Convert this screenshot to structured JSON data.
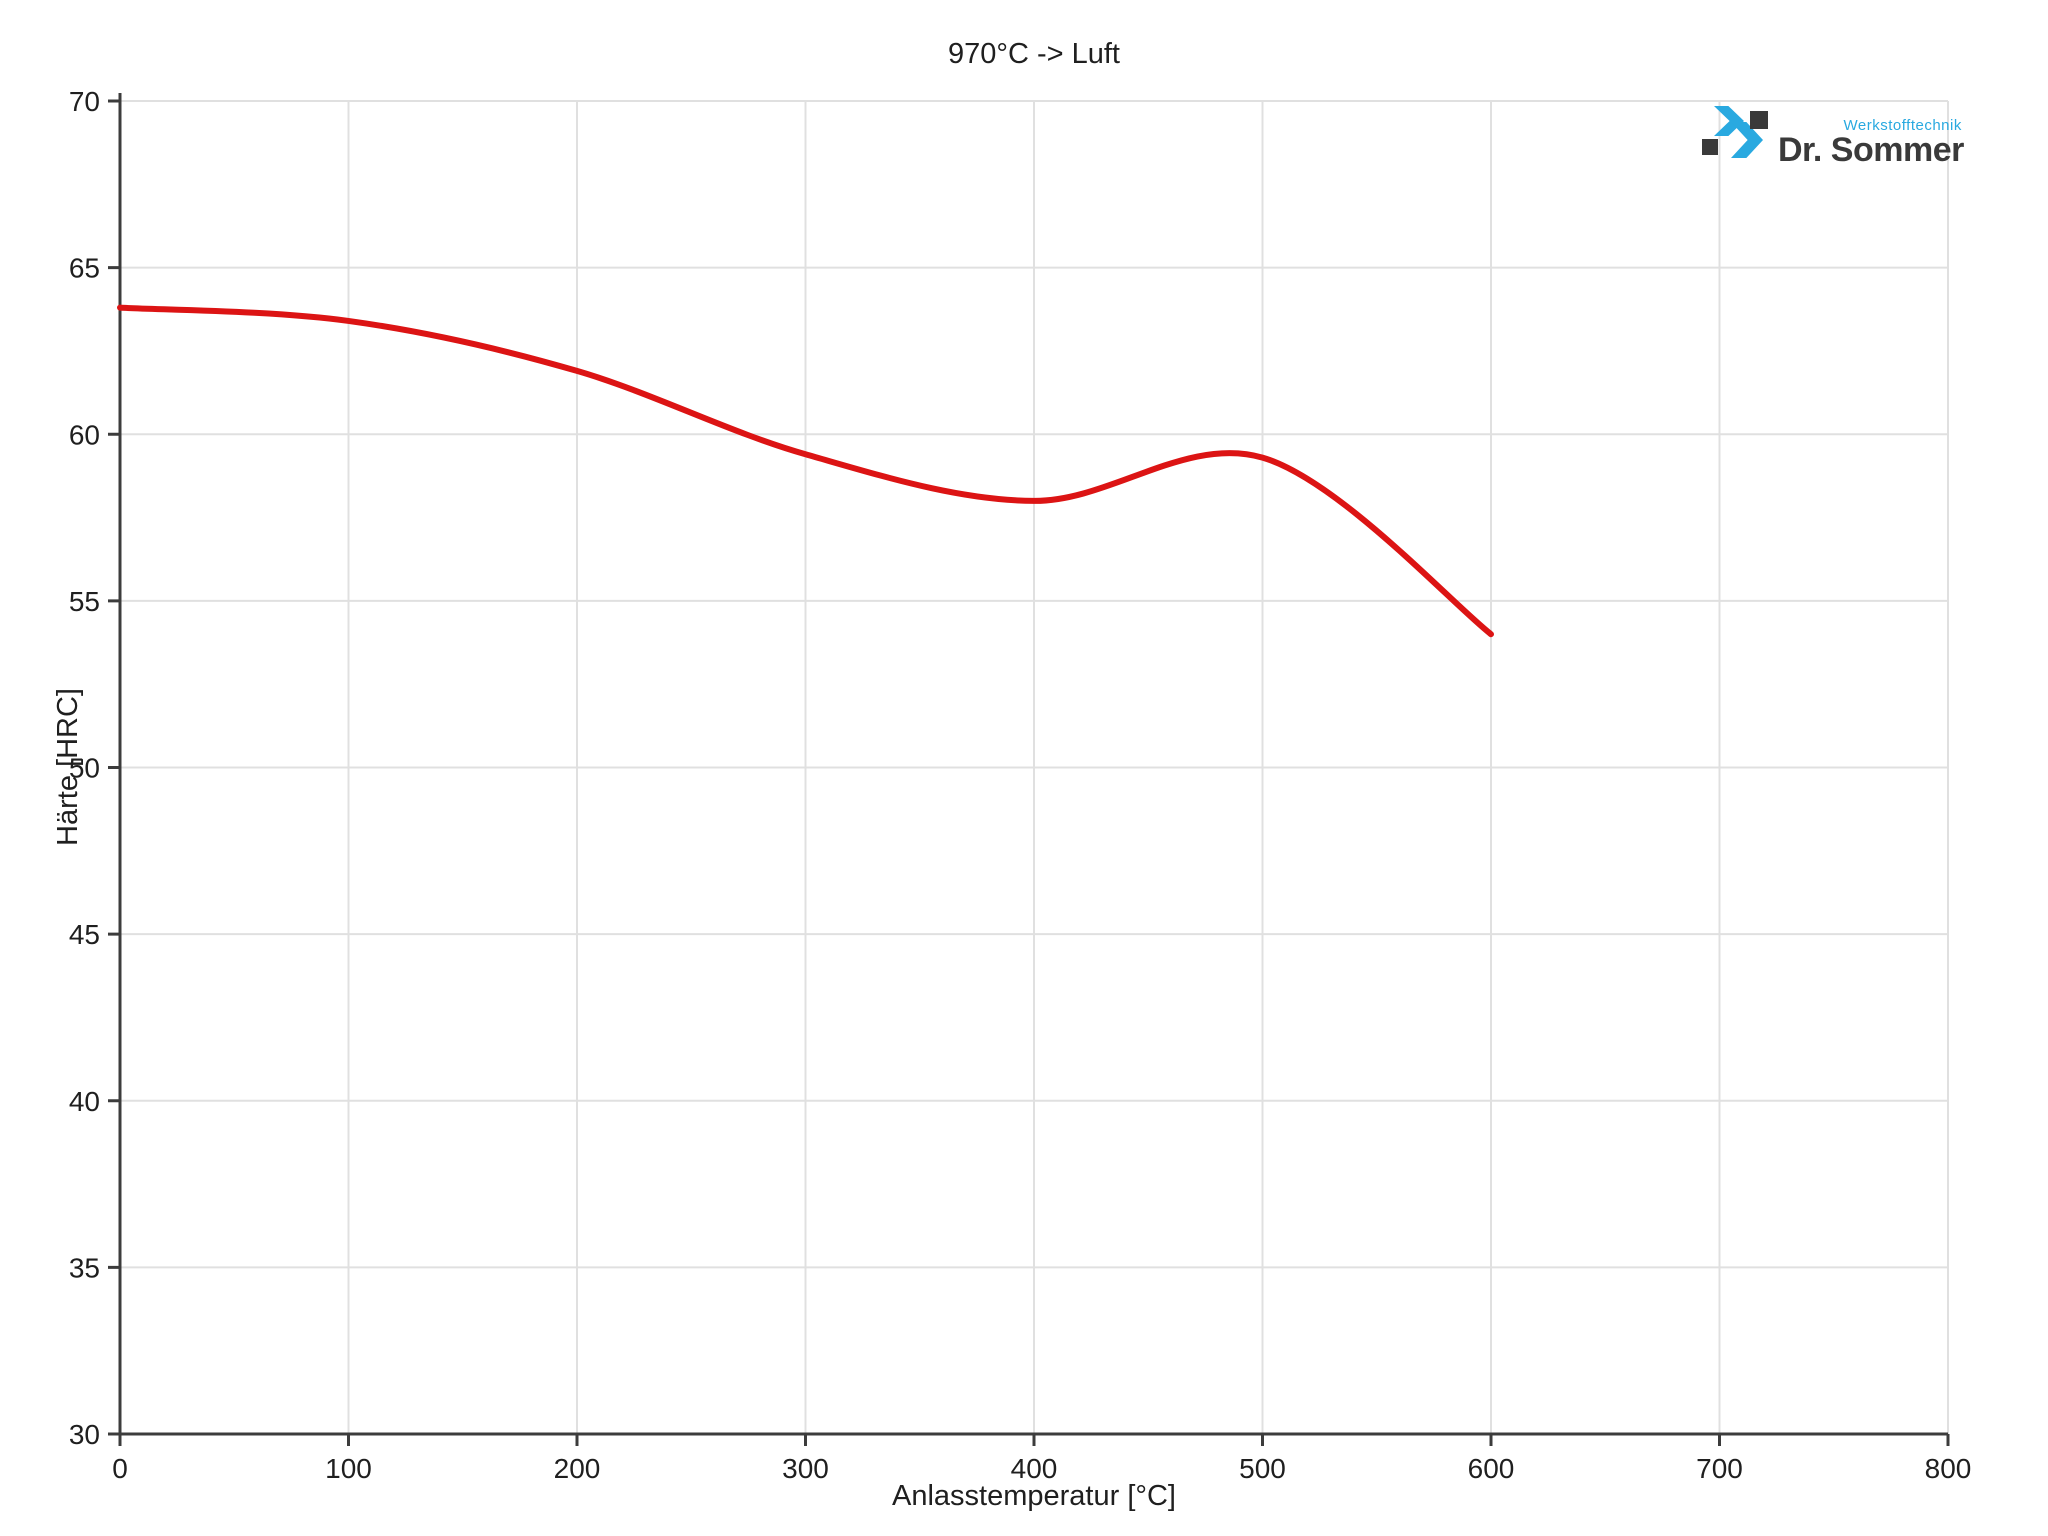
{
  "title": "970°C -> Luft",
  "logo": {
    "brand": "Dr. Sommer",
    "tagline": "Werkstofftechnik",
    "brand_color": "#3a3a3a",
    "accent_color": "#29a9e0"
  },
  "chart_data": {
    "type": "line",
    "title": "970°C -> Luft",
    "xlabel": "Anlasstemperatur [°C]",
    "ylabel": "Härte [HRC]",
    "xlim": [
      0,
      800
    ],
    "ylim": [
      30,
      70
    ],
    "x_ticks": [
      0,
      100,
      200,
      300,
      400,
      500,
      600,
      700,
      800
    ],
    "y_ticks": [
      30,
      35,
      40,
      45,
      50,
      55,
      60,
      65,
      70
    ],
    "grid": true,
    "legend": "none",
    "series": [
      {
        "name": "970°C -> Luft",
        "color": "#dc1414",
        "x": [
          0,
          100,
          200,
          300,
          400,
          500,
          600
        ],
        "y": [
          63.8,
          63.4,
          61.9,
          59.4,
          58.0,
          59.3,
          54.0
        ]
      }
    ],
    "colors": {
      "grid": "#e0e0e0",
      "axis": "#3c3c3c",
      "text": "#1f1f1f",
      "background": "#ffffff"
    }
  }
}
